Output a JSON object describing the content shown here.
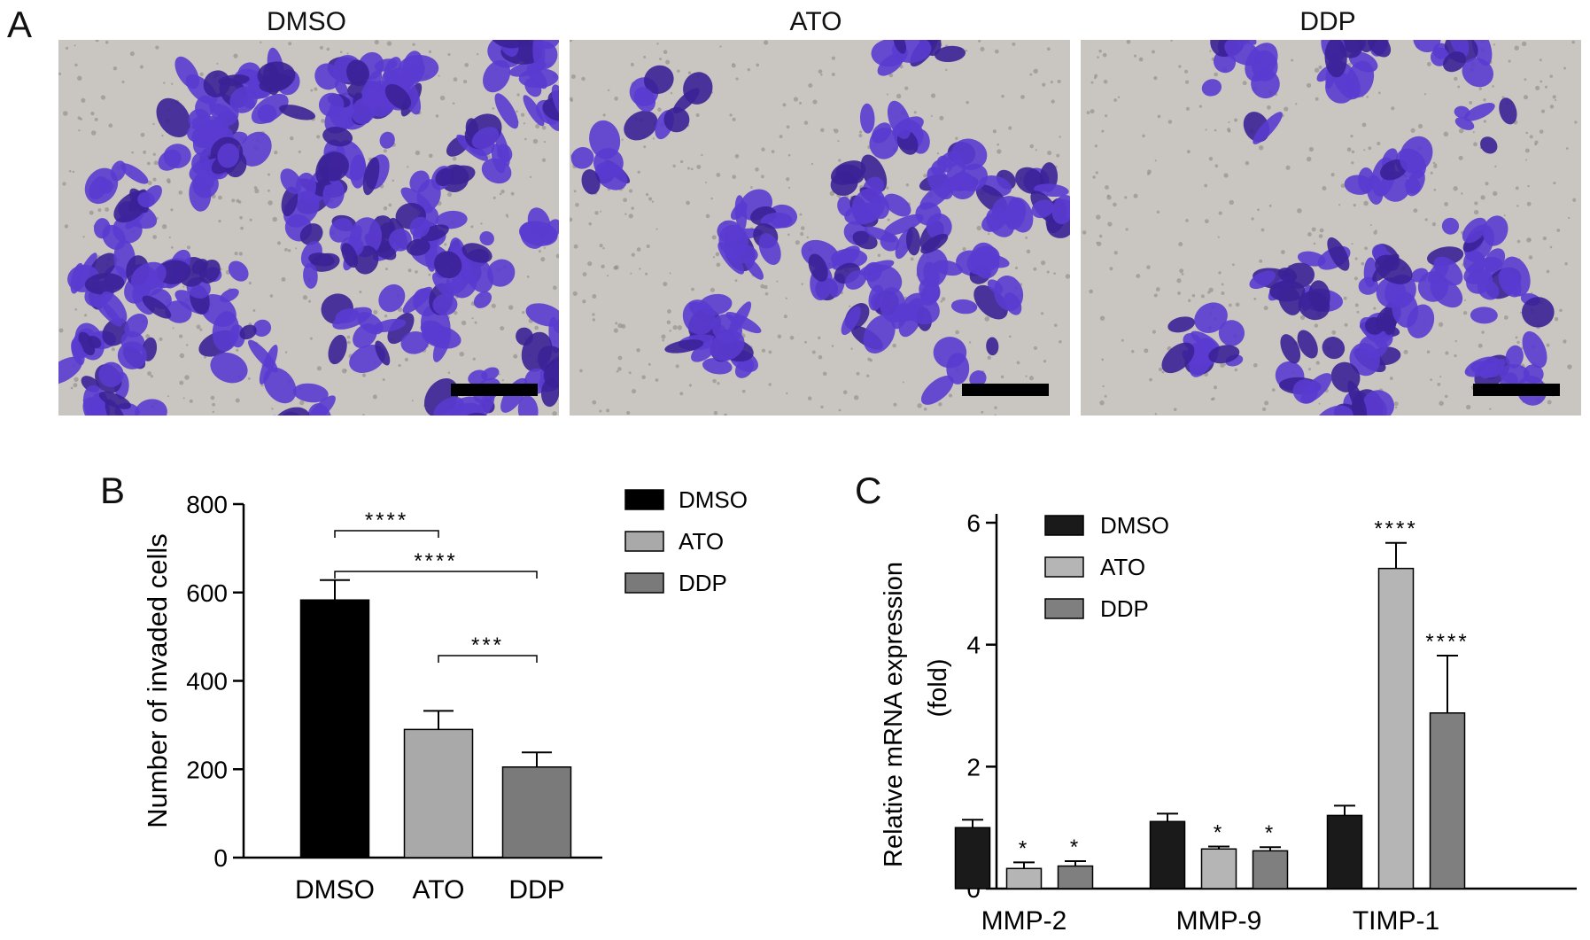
{
  "panel_a": {
    "letter": "A",
    "images": [
      {
        "title": "DMSO",
        "density": 0.62
      },
      {
        "title": "ATO",
        "density": 0.34
      },
      {
        "title": "DDP",
        "density": 0.26
      }
    ]
  },
  "colors": {
    "stain": "#5a3bd0",
    "stain_dark": "#3b2196",
    "background": "#c9c6c2",
    "dmso": "#000000",
    "ato": "#a9a9a9",
    "ddp": "#7a7a7a",
    "c_dmso": "#1a1a1a",
    "c_ato": "#b5b5b5",
    "c_ddp": "#7f7f7f"
  },
  "chart_data": [
    {
      "panel": "B",
      "type": "bar",
      "ylabel": "Number of invaded cells",
      "xlabel": "",
      "ylim": [
        0,
        800
      ],
      "yticks": [
        "0",
        "200",
        "400",
        "600",
        "800"
      ],
      "categories": [
        "DMSO",
        "ATO",
        "DDP"
      ],
      "values": [
        583,
        290,
        205
      ],
      "errors": [
        45,
        42,
        33
      ],
      "legend": [
        "DMSO",
        "ATO",
        "DDP"
      ],
      "legend_position": "top-right",
      "significance": [
        {
          "from": 0,
          "to": 1,
          "label": "****"
        },
        {
          "from": 0,
          "to": 2,
          "label": "****"
        },
        {
          "from": 1,
          "to": 2,
          "label": "***"
        }
      ]
    },
    {
      "panel": "C",
      "type": "bar",
      "ylabel": "Relative mRNA expression",
      "ylabel2": "(fold)",
      "xlabel": "",
      "ylim": [
        0,
        6
      ],
      "yticks": [
        "0",
        "2",
        "4",
        "6"
      ],
      "categories": [
        "MMP-2",
        "MMP-9",
        "TIMP-1"
      ],
      "series": [
        {
          "name": "DMSO",
          "values": [
            1.0,
            1.1,
            1.2
          ],
          "errors": [
            0.13,
            0.13,
            0.16
          ],
          "marks": [
            "",
            "",
            ""
          ]
        },
        {
          "name": "ATO",
          "values": [
            0.33,
            0.65,
            5.25
          ],
          "errors": [
            0.1,
            0.04,
            0.42
          ],
          "marks": [
            "*",
            "*",
            "****"
          ]
        },
        {
          "name": "DDP",
          "values": [
            0.37,
            0.62,
            2.88
          ],
          "errors": [
            0.08,
            0.06,
            0.94
          ],
          "marks": [
            "*",
            "*",
            "****"
          ]
        }
      ],
      "legend_position": "top-left"
    }
  ]
}
